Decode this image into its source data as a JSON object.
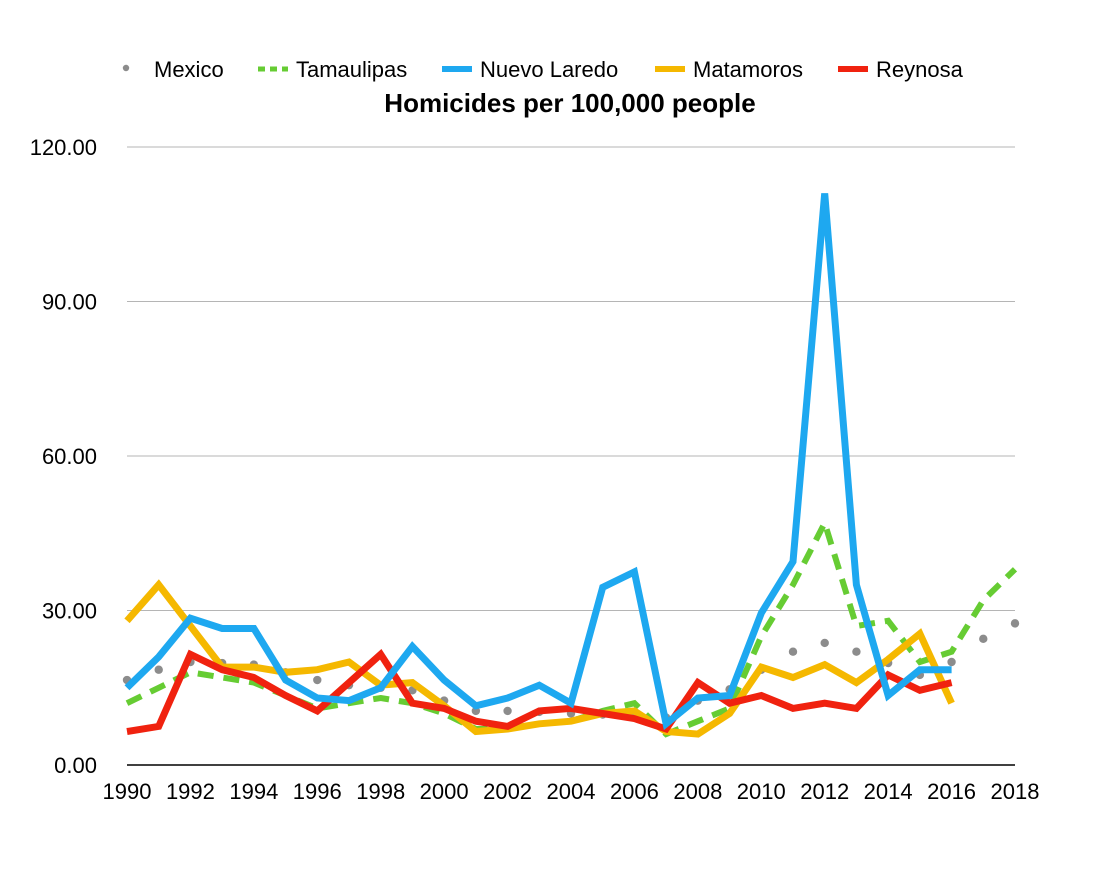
{
  "chart_data": {
    "type": "line",
    "title": "Homicides per 100,000 people",
    "xlabel": "",
    "ylabel": "",
    "xlim": [
      1990,
      2018
    ],
    "ylim": [
      0,
      120
    ],
    "x_ticks": [
      "1990",
      "1992",
      "1994",
      "1996",
      "1998",
      "2000",
      "2002",
      "2004",
      "2006",
      "2008",
      "2010",
      "2012",
      "2014",
      "2016",
      "2018"
    ],
    "y_ticks": [
      "0.00",
      "30.00",
      "60.00",
      "90.00",
      "120.00"
    ],
    "grid": "horizontal",
    "legend_position": "top",
    "series": [
      {
        "name": "Mexico",
        "color": "#8c8c8c",
        "style": "dotted",
        "x": [
          1990,
          1991,
          1992,
          1993,
          1994,
          1995,
          1996,
          1997,
          1998,
          1999,
          2000,
          2001,
          2002,
          2003,
          2004,
          2005,
          2006,
          2007,
          2008,
          2009,
          2010,
          2011,
          2012,
          2013,
          2014,
          2015,
          2016,
          2017,
          2018
        ],
        "values": [
          16.5,
          18.5,
          20,
          19.8,
          19.5,
          18,
          16.5,
          15.5,
          15,
          14.5,
          12.5,
          10.5,
          10.5,
          10.3,
          10,
          9.8,
          10,
          9.2,
          12.5,
          14.7,
          18.5,
          22,
          23.7,
          22,
          19.8,
          17.5,
          20,
          24.5,
          27.5
        ]
      },
      {
        "name": "Tamaulipas",
        "color": "#66cc33",
        "style": "dashed",
        "x": [
          1990,
          1991,
          1992,
          1993,
          1994,
          1995,
          1996,
          1997,
          1998,
          1999,
          2000,
          2001,
          2002,
          2003,
          2004,
          2005,
          2006,
          2007,
          2008,
          2009,
          2010,
          2011,
          2012,
          2013,
          2014,
          2015,
          2016,
          2017,
          2018
        ],
        "values": [
          12,
          15,
          18,
          17,
          16,
          13.5,
          11,
          12,
          13,
          12,
          10,
          7,
          7,
          8,
          8.5,
          10.5,
          12,
          6,
          8.5,
          11,
          25,
          35,
          47,
          27,
          28,
          20,
          22,
          32,
          38
        ]
      },
      {
        "name": "Nuevo Laredo",
        "color": "#1ea8f0",
        "style": "solid",
        "x": [
          1990,
          1991,
          1992,
          1993,
          1994,
          1995,
          1996,
          1997,
          1998,
          1999,
          2000,
          2001,
          2002,
          2003,
          2004,
          2005,
          2006,
          2007,
          2008,
          2009,
          2010,
          2011,
          2012,
          2013,
          2014,
          2015,
          2016
        ],
        "values": [
          15,
          21,
          28.5,
          26.5,
          26.5,
          16.5,
          13,
          12.5,
          15,
          23,
          16.5,
          11.5,
          13,
          15.5,
          12,
          34.5,
          37.5,
          8,
          13,
          13.5,
          29.5,
          39.5,
          111,
          35,
          13.5,
          18.5,
          18.5
        ]
      },
      {
        "name": "Matamoros",
        "color": "#f5b800",
        "style": "solid",
        "x": [
          1990,
          1991,
          1992,
          1993,
          1994,
          1995,
          1996,
          1997,
          1998,
          1999,
          2000,
          2001,
          2002,
          2003,
          2004,
          2005,
          2006,
          2007,
          2008,
          2009,
          2010,
          2011,
          2012,
          2013,
          2014,
          2015,
          2016
        ],
        "values": [
          28,
          35,
          27,
          19,
          19,
          18,
          18.5,
          20,
          15.5,
          16,
          11.5,
          6.5,
          7,
          8,
          8.5,
          10,
          10.5,
          6.5,
          6,
          10,
          19,
          17,
          19.5,
          16,
          20.5,
          25.5,
          12
        ]
      },
      {
        "name": "Reynosa",
        "color": "#f0220f",
        "style": "solid",
        "x": [
          1990,
          1991,
          1992,
          1993,
          1994,
          1995,
          1996,
          1997,
          1998,
          1999,
          2000,
          2001,
          2002,
          2003,
          2004,
          2005,
          2006,
          2007,
          2008,
          2009,
          2010,
          2011,
          2012,
          2013,
          2014,
          2015,
          2016
        ],
        "values": [
          6.5,
          7.5,
          21.5,
          18.5,
          17,
          13.5,
          10.5,
          16,
          21.5,
          12,
          11,
          8.5,
          7.5,
          10.5,
          11,
          10,
          9,
          7,
          16,
          12,
          13.5,
          11,
          12,
          11,
          17.5,
          14.5,
          16
        ]
      }
    ]
  }
}
